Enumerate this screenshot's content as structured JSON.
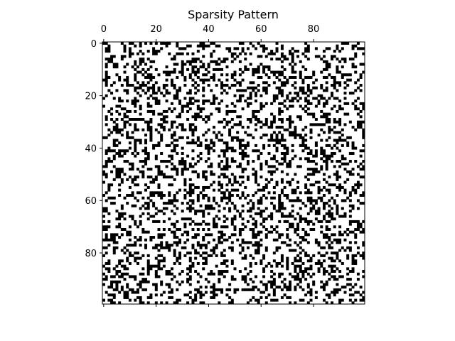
{
  "chart_data": {
    "type": "heatmap",
    "subtype": "sparsity-pattern",
    "title": "Sparsity Pattern",
    "xlabel": "",
    "ylabel": "",
    "rows": 100,
    "cols": 100,
    "xlim": [
      -0.5,
      99.5
    ],
    "ylim": [
      99.5,
      -0.5
    ],
    "x_axis_position": "top",
    "x_tick_values": [
      0,
      20,
      40,
      60,
      80
    ],
    "x_tick_labels": [
      "0",
      "20",
      "40",
      "60",
      "80"
    ],
    "y_tick_values": [
      0,
      20,
      40,
      60,
      80
    ],
    "y_tick_labels": [
      "0",
      "20",
      "40",
      "60",
      "80"
    ],
    "grid": false,
    "legend": "none",
    "fill_color": "#000000",
    "background_color": "#ffffff",
    "density": 0.3,
    "pattern_generator": "pseudo-random uniform, seed 7",
    "nonzero_entries_estimated": true
  }
}
